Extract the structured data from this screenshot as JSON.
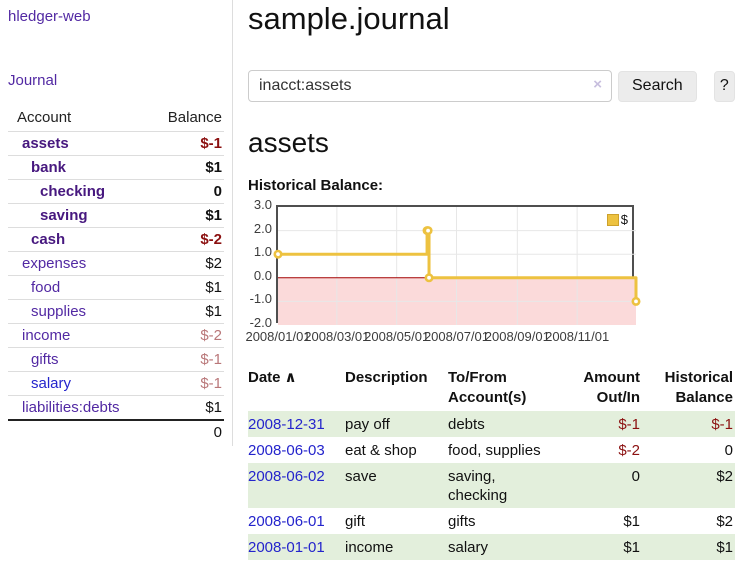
{
  "sidebar": {
    "brand": "hledger-web",
    "journal_link": "Journal",
    "account_col": "Account",
    "balance_col": "Balance",
    "rows": [
      {
        "name": "assets",
        "balance": "$-1"
      },
      {
        "name": "bank",
        "balance": "$1"
      },
      {
        "name": "checking",
        "balance": "0"
      },
      {
        "name": "saving",
        "balance": "$1"
      },
      {
        "name": "cash",
        "balance": "$-2"
      },
      {
        "name": "expenses",
        "balance": "$2"
      },
      {
        "name": "food",
        "balance": "$1"
      },
      {
        "name": "supplies",
        "balance": "$1"
      },
      {
        "name": "income",
        "balance": "$-2"
      },
      {
        "name": "gifts",
        "balance": "$-1"
      },
      {
        "name": "salary",
        "balance": "$-1"
      },
      {
        "name": "liabilities:debts",
        "balance": "$1"
      }
    ],
    "total": "0"
  },
  "main": {
    "title": "sample.journal",
    "search": {
      "value": "inacct:assets",
      "clear_icon": "×",
      "search_button": "Search",
      "help_button": "?"
    },
    "account_heading": "assets",
    "section_label": "Historical Balance:"
  },
  "chart_data": {
    "type": "line",
    "title": "Historical Balance",
    "legend": "$",
    "line_color": "#edc240",
    "negative_fill": "#fbdada",
    "zero_line_color": "#a40000",
    "grid_color": "#e7e7e7",
    "border_color": "#4f4f4f",
    "ylim": [
      -2,
      3
    ],
    "yticks": [
      3,
      2,
      1,
      0,
      -1,
      -2
    ],
    "xticks": [
      {
        "f": 0.0,
        "label": "2008/01/01"
      },
      {
        "f": 0.1644,
        "label": "2008/03/01"
      },
      {
        "f": 0.3315,
        "label": "2008/05/01"
      },
      {
        "f": 0.4986,
        "label": "2008/07/01"
      },
      {
        "f": 0.6685,
        "label": "2008/09/01"
      },
      {
        "f": 0.8356,
        "label": "2008/11/01"
      }
    ],
    "points": [
      {
        "x": "2008-01-01",
        "f": 0.0,
        "y": 1
      },
      {
        "x": "2008-06-01",
        "f": 0.4164,
        "y": 2
      },
      {
        "x": "2008-06-02",
        "f": 0.4192,
        "y": 2
      },
      {
        "x": "2008-06-03",
        "f": 0.4219,
        "y": 0
      },
      {
        "x": "2008-12-31",
        "f": 1.0,
        "y": -1
      }
    ]
  },
  "register": {
    "sort_indicator": "∧",
    "headers": {
      "date": "Date",
      "description": "Description",
      "accounts": "To/From Account(s)",
      "amount": "Amount Out/In",
      "balance": "Historical Balance"
    },
    "rows": [
      {
        "date": "2008-12-31",
        "description": "pay off",
        "accounts": "debts",
        "amount": "$-1",
        "balance": "$-1"
      },
      {
        "date": "2008-06-03",
        "description": "eat & shop",
        "accounts": "food, supplies",
        "amount": "$-2",
        "balance": "0"
      },
      {
        "date": "2008-06-02",
        "description": "save",
        "accounts": "saving, checking",
        "amount": "0",
        "balance": "$2"
      },
      {
        "date": "2008-06-01",
        "description": "gift",
        "accounts": "gifts",
        "amount": "$1",
        "balance": "$2"
      },
      {
        "date": "2008-01-01",
        "description": "income",
        "accounts": "salary",
        "amount": "$1",
        "balance": "$1"
      }
    ]
  }
}
